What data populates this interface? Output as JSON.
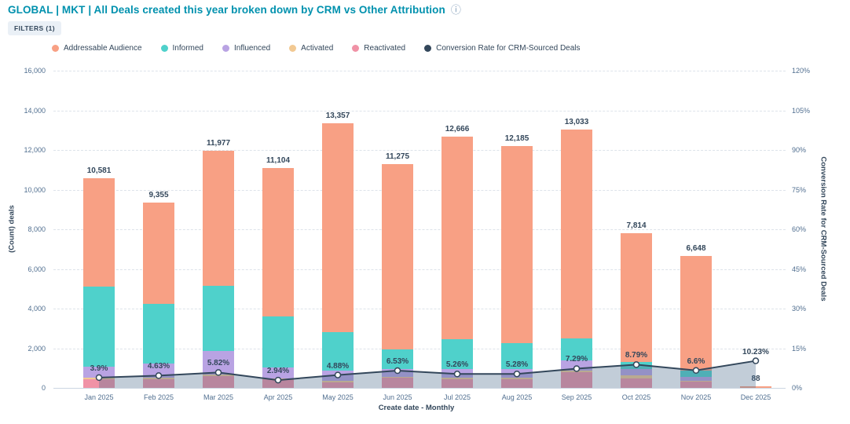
{
  "header": {
    "title": "GLOBAL | MKT | All Deals created this year broken down by CRM vs Other Attribution",
    "title_color": "#0091ae",
    "info_icon": "ⓘ",
    "filters_label": "FILTERS (1)"
  },
  "legend": [
    {
      "label": "Addressable Audience",
      "color": "#f8a084"
    },
    {
      "label": "Informed",
      "color": "#4fd1cb"
    },
    {
      "label": "Influenced",
      "color": "#b9a3e3"
    },
    {
      "label": "Activated",
      "color": "#f2c992"
    },
    {
      "label": "Reactivated",
      "color": "#f092a6"
    },
    {
      "label": "Conversion Rate for CRM-Sourced Deals",
      "color": "#33475b"
    }
  ],
  "chart_data": {
    "type": "combo-stacked-bar-line",
    "categories": [
      "Jan 2025",
      "Feb 2025",
      "Mar 2025",
      "Apr 2025",
      "May 2025",
      "Jun 2025",
      "Jul 2025",
      "Aug 2025",
      "Sep 2025",
      "Oct 2025",
      "Nov 2025",
      "Dec 2025"
    ],
    "bar_series": [
      {
        "name": "Reactivated",
        "color": "#f092a6",
        "values": [
          450,
          450,
          600,
          430,
          290,
          500,
          450,
          450,
          790,
          480,
          300,
          0
        ]
      },
      {
        "name": "Activated",
        "color": "#f2c992",
        "values": [
          70,
          70,
          60,
          60,
          60,
          60,
          60,
          70,
          80,
          160,
          60,
          0
        ]
      },
      {
        "name": "Influenced",
        "color": "#b9a3e3",
        "values": [
          550,
          710,
          1200,
          540,
          520,
          400,
          440,
          430,
          530,
          320,
          210,
          0
        ]
      },
      {
        "name": "Informed",
        "color": "#4fd1cb",
        "values": [
          4030,
          3010,
          3290,
          2570,
          1930,
          990,
          1500,
          1300,
          1100,
          350,
          310,
          0
        ]
      },
      {
        "name": "Addressable Audience",
        "color": "#f8a084",
        "values": [
          5481,
          5115,
          6827,
          7504,
          10557,
          9325,
          10216,
          9935,
          10533,
          6504,
          5768,
          88
        ]
      }
    ],
    "bar_totals": [
      10581,
      9355,
      11977,
      11104,
      13357,
      11275,
      12666,
      12185,
      13033,
      7814,
      6648,
      88
    ],
    "bar_total_labels": [
      "10,581",
      "9,355",
      "11,977",
      "11,104",
      "13,357",
      "11,275",
      "12,666",
      "12,185",
      "13,033",
      "7,814",
      "6,648",
      "88"
    ],
    "line_series": {
      "name": "Conversion Rate for CRM-Sourced Deals",
      "color": "#33475b",
      "area_fill": "rgba(81,111,144,0.35)",
      "values_pct": [
        3.9,
        4.63,
        5.82,
        2.94,
        4.88,
        6.53,
        5.26,
        5.28,
        7.29,
        8.79,
        6.6,
        10.23
      ],
      "labels": [
        "3.9%",
        "4.63%",
        "5.82%",
        "2.94%",
        "4.88%",
        "6.53%",
        "5.26%",
        "5.28%",
        "7.29%",
        "8.79%",
        "6.6%",
        "10.23%"
      ]
    },
    "left_axis": {
      "title": "(Count) deals",
      "min": 0,
      "max": 16000,
      "tick_step": 2000,
      "ticks": [
        "0",
        "2,000",
        "4,000",
        "6,000",
        "8,000",
        "10,000",
        "12,000",
        "14,000",
        "16,000"
      ]
    },
    "right_axis": {
      "title": "Conversion Rate for CRM-Sourced Deals",
      "min": 0,
      "max": 120,
      "tick_step": 15,
      "ticks": [
        "0%",
        "15%",
        "30%",
        "45%",
        "60%",
        "75%",
        "90%",
        "105%",
        "120%"
      ]
    },
    "x_axis": {
      "title": "Create date - Monthly"
    },
    "grid": "horizontal-dashed",
    "legend_position": "top"
  }
}
